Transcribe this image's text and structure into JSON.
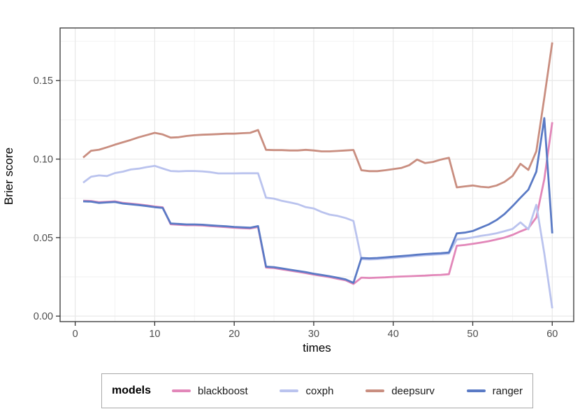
{
  "chart_data": {
    "type": "line",
    "title": "",
    "xlabel": "times",
    "ylabel": "Brier score",
    "grid": "major+minor",
    "legend": {
      "title": "models",
      "position": "bottom"
    },
    "xlim": [
      -1.9,
      62.7
    ],
    "ylim": [
      -0.0035,
      0.1835
    ],
    "x_ticks": {
      "values": [
        0,
        10,
        20,
        30,
        40,
        50,
        60
      ],
      "labels": [
        "0",
        "10",
        "20",
        "30",
        "40",
        "50",
        "60"
      ]
    },
    "y_ticks": {
      "values": [
        0,
        0.05,
        0.1,
        0.15
      ],
      "labels": [
        "0.00",
        "0.05",
        "0.10",
        "0.15"
      ]
    },
    "x_minor": [
      5,
      15,
      25,
      35,
      45,
      55
    ],
    "y_minor": [
      0.025,
      0.075,
      0.125,
      0.175
    ],
    "x": [
      1,
      2,
      3,
      4,
      5,
      6,
      7,
      8,
      9,
      10,
      11,
      12,
      13,
      14,
      15,
      16,
      17,
      18,
      19,
      20,
      21,
      22,
      23,
      24,
      25,
      26,
      27,
      28,
      29,
      30,
      31,
      32,
      33,
      34,
      35,
      36,
      37,
      38,
      39,
      40,
      41,
      42,
      43,
      44,
      45,
      46,
      47,
      48,
      49,
      50,
      51,
      52,
      53,
      54,
      55,
      56,
      57,
      58,
      59,
      60
    ],
    "series": [
      {
        "name": "blackboost",
        "color": "#E287B9",
        "values": [
          0.0735,
          0.0733,
          0.0725,
          0.0728,
          0.0731,
          0.0721,
          0.0716,
          0.0711,
          0.0705,
          0.0698,
          0.0693,
          0.0585,
          0.0582,
          0.0579,
          0.0579,
          0.0577,
          0.0573,
          0.057,
          0.0567,
          0.0563,
          0.056,
          0.0558,
          0.0568,
          0.0309,
          0.0306,
          0.0298,
          0.029,
          0.0282,
          0.0274,
          0.0264,
          0.0256,
          0.0248,
          0.0238,
          0.0228,
          0.0205,
          0.0245,
          0.0243,
          0.0245,
          0.0247,
          0.025,
          0.0252,
          0.0254,
          0.0256,
          0.0258,
          0.0261,
          0.0263,
          0.0267,
          0.0448,
          0.0453,
          0.046,
          0.0468,
          0.0477,
          0.0488,
          0.05,
          0.0517,
          0.054,
          0.056,
          0.0628,
          0.0872,
          0.1235
        ]
      },
      {
        "name": "coxph",
        "color": "#BAC3EE",
        "values": [
          0.085,
          0.0888,
          0.0896,
          0.0892,
          0.0911,
          0.092,
          0.0934,
          0.0939,
          0.0949,
          0.0957,
          0.094,
          0.0924,
          0.0922,
          0.0924,
          0.0924,
          0.0922,
          0.0917,
          0.0909,
          0.0909,
          0.0909,
          0.091,
          0.091,
          0.091,
          0.0754,
          0.0748,
          0.0734,
          0.0724,
          0.0713,
          0.0694,
          0.0686,
          0.0663,
          0.0646,
          0.0638,
          0.0625,
          0.0606,
          0.0363,
          0.0361,
          0.0363,
          0.0367,
          0.0371,
          0.0375,
          0.0379,
          0.0384,
          0.0388,
          0.0391,
          0.0394,
          0.0398,
          0.0488,
          0.0493,
          0.0501,
          0.0511,
          0.0518,
          0.0528,
          0.0541,
          0.0555,
          0.0597,
          0.0553,
          0.0709,
          0.04,
          0.005
        ]
      },
      {
        "name": "deepsurv",
        "color": "#C98E80",
        "values": [
          0.101,
          0.1053,
          0.106,
          0.1075,
          0.1092,
          0.1107,
          0.1122,
          0.1139,
          0.1153,
          0.1167,
          0.1157,
          0.1137,
          0.1139,
          0.1147,
          0.1152,
          0.1155,
          0.1157,
          0.1159,
          0.1162,
          0.1162,
          0.1165,
          0.1167,
          0.1185,
          0.1059,
          0.1057,
          0.1057,
          0.1055,
          0.1055,
          0.1059,
          0.1055,
          0.1049,
          0.1049,
          0.1052,
          0.1055,
          0.1058,
          0.0929,
          0.0923,
          0.0923,
          0.0929,
          0.0936,
          0.0943,
          0.0961,
          0.0997,
          0.0975,
          0.0982,
          0.0997,
          0.1008,
          0.082,
          0.0826,
          0.0832,
          0.0824,
          0.082,
          0.0832,
          0.0855,
          0.0892,
          0.097,
          0.0931,
          0.105,
          0.139,
          0.1743
        ]
      },
      {
        "name": "ranger",
        "color": "#5A7AC5",
        "values": [
          0.0731,
          0.0729,
          0.0721,
          0.0724,
          0.0727,
          0.0717,
          0.0712,
          0.0707,
          0.0701,
          0.0694,
          0.0689,
          0.059,
          0.0587,
          0.0584,
          0.0584,
          0.0582,
          0.0578,
          0.0575,
          0.0572,
          0.0568,
          0.0565,
          0.0563,
          0.0573,
          0.0315,
          0.0312,
          0.0304,
          0.0296,
          0.0288,
          0.028,
          0.027,
          0.0262,
          0.0254,
          0.0244,
          0.0234,
          0.0212,
          0.037,
          0.0368,
          0.037,
          0.0374,
          0.0378,
          0.0382,
          0.0386,
          0.0391,
          0.0395,
          0.0398,
          0.0401,
          0.0405,
          0.0527,
          0.0532,
          0.0542,
          0.0563,
          0.0584,
          0.0612,
          0.065,
          0.07,
          0.0754,
          0.0805,
          0.092,
          0.1261,
          0.0527
        ]
      }
    ],
    "style": {
      "panel_border": "#333333",
      "grid_major": "#e8e8e8",
      "grid_minor": "#f2f2f2",
      "tick_color": "#333333",
      "tick_label_color": "#4d4d4d",
      "line_width": 2.8
    }
  }
}
